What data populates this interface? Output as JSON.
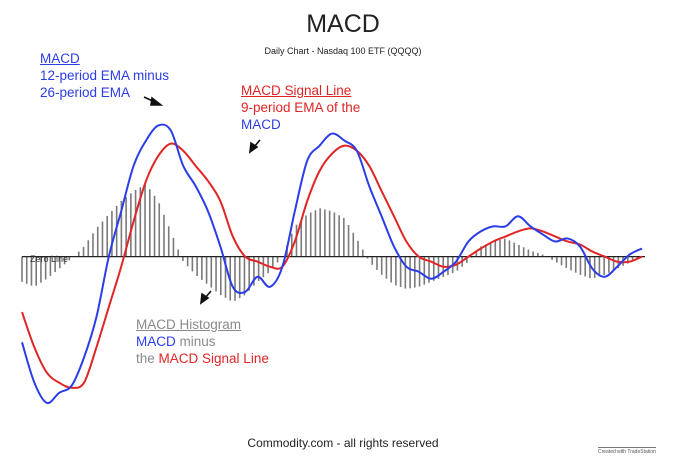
{
  "header": {
    "title": "MACD",
    "subtitle": "Daily Chart - Nasdaq 100 ETF (QQQQ)"
  },
  "annotations": {
    "macd_title": "MACD",
    "macd_line1": "12-period EMA minus",
    "macd_line2": "26-period EMA",
    "signal_title": "MACD Signal Line",
    "signal_line1": "9-period EMA of the",
    "signal_line2": "MACD",
    "hist_title": "MACD Histogram",
    "hist_line1_a": "MACD",
    "hist_line1_b": " minus",
    "hist_line2_a": "the ",
    "hist_line2_b": "MACD Signal Line",
    "zero_line": "Zero Line"
  },
  "footer": {
    "copyright": "Commodity.com - all rights reserved",
    "badge": "Created with TradeStation"
  },
  "colors": {
    "macd": "#2b3de8",
    "signal": "#e02525",
    "histogram": "#7a7a7a",
    "zero_line": "#222222"
  },
  "chart_data": {
    "type": "line",
    "title": "MACD",
    "subtitle": "Daily Chart - Nasdaq 100 ETF (QQQQ)",
    "xlim": [
      0,
      100
    ],
    "ylim": [
      -1.6,
      1.85
    ],
    "grid": false,
    "series": [
      {
        "name": "MACD",
        "color": "#2b3de8",
        "x": [
          0,
          2,
          4,
          6,
          8,
          10,
          12,
          14,
          16,
          18,
          20,
          22,
          24,
          26,
          28,
          30,
          32,
          34,
          36,
          38,
          40,
          42,
          44,
          46,
          48,
          50,
          52,
          54,
          56,
          58,
          60,
          62,
          64,
          66,
          68,
          70,
          72,
          74,
          76,
          78,
          80,
          82,
          84,
          86,
          88,
          90,
          92,
          94,
          96,
          98,
          100
        ],
        "values": [
          -0.85,
          -1.25,
          -1.45,
          -1.35,
          -1.28,
          -1.0,
          -0.6,
          0.0,
          0.45,
          0.9,
          1.15,
          1.3,
          1.25,
          0.9,
          0.7,
          0.45,
          0.1,
          -0.3,
          -0.35,
          -0.2,
          -0.3,
          -0.1,
          0.45,
          0.95,
          1.1,
          1.22,
          1.15,
          1.05,
          0.7,
          0.4,
          0.1,
          -0.1,
          -0.15,
          -0.22,
          -0.15,
          -0.05,
          0.15,
          0.25,
          0.3,
          0.3,
          0.4,
          0.3,
          0.22,
          0.15,
          0.18,
          0.1,
          -0.12,
          -0.2,
          -0.1,
          0.02,
          0.08
        ]
      },
      {
        "name": "MACD Signal Line",
        "color": "#e02525",
        "x": [
          0,
          2,
          4,
          6,
          8,
          10,
          12,
          14,
          16,
          18,
          20,
          22,
          24,
          26,
          28,
          30,
          32,
          34,
          36,
          38,
          40,
          42,
          44,
          46,
          48,
          50,
          52,
          54,
          56,
          58,
          60,
          62,
          64,
          66,
          68,
          70,
          72,
          74,
          76,
          78,
          80,
          82,
          84,
          86,
          88,
          90,
          92,
          94,
          96,
          98,
          100
        ],
        "values": [
          -0.55,
          -0.9,
          -1.15,
          -1.25,
          -1.3,
          -1.25,
          -0.9,
          -0.5,
          -0.1,
          0.35,
          0.75,
          1.0,
          1.12,
          1.05,
          0.9,
          0.75,
          0.55,
          0.2,
          0.0,
          -0.05,
          -0.1,
          -0.1,
          0.15,
          0.55,
          0.85,
          1.02,
          1.1,
          1.05,
          0.9,
          0.65,
          0.4,
          0.15,
          0.0,
          -0.05,
          -0.1,
          -0.08,
          0.0,
          0.08,
          0.15,
          0.2,
          0.25,
          0.28,
          0.25,
          0.2,
          0.15,
          0.12,
          0.05,
          0.0,
          -0.05,
          -0.05,
          0.0
        ]
      }
    ],
    "histogram": {
      "name": "MACD Histogram",
      "color": "#7a7a7a",
      "x": [
        0,
        2,
        4,
        6,
        8,
        10,
        12,
        14,
        16,
        18,
        20,
        22,
        24,
        26,
        28,
        30,
        32,
        34,
        36,
        38,
        40,
        42,
        44,
        46,
        48,
        50,
        52,
        54,
        56,
        58,
        60,
        62,
        64,
        66,
        68,
        70,
        72,
        74,
        76,
        78,
        80,
        82,
        84,
        86,
        88,
        90,
        92,
        94,
        96,
        98,
        100
      ],
      "values": [
        -0.25,
        -0.3,
        -0.22,
        -0.12,
        -0.02,
        0.1,
        0.28,
        0.42,
        0.55,
        0.65,
        0.72,
        0.55,
        0.25,
        -0.05,
        -0.18,
        -0.28,
        -0.38,
        -0.45,
        -0.38,
        -0.25,
        -0.15,
        0.0,
        0.3,
        0.42,
        0.48,
        0.45,
        0.38,
        0.18,
        -0.05,
        -0.18,
        -0.28,
        -0.32,
        -0.3,
        -0.25,
        -0.2,
        -0.15,
        -0.05,
        0.1,
        0.15,
        0.18,
        0.12,
        0.06,
        0.02,
        -0.05,
        -0.12,
        -0.18,
        -0.22,
        -0.18,
        -0.12,
        -0.06,
        0.0
      ]
    },
    "annotations": [
      "Zero Line",
      "MACD",
      "12-period EMA minus",
      "26-period EMA",
      "MACD Signal Line",
      "9-period EMA of the",
      "MACD",
      "MACD Histogram",
      "MACD minus",
      "the MACD Signal Line"
    ]
  }
}
